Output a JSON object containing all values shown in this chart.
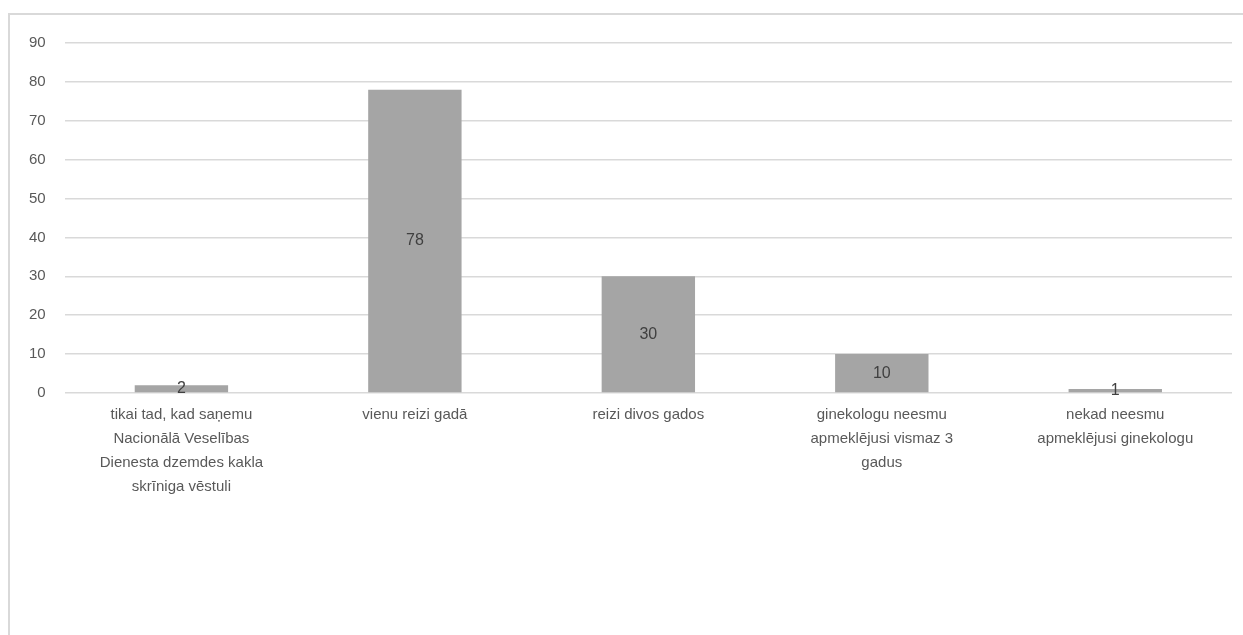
{
  "chart_data": {
    "type": "bar",
    "categories": [
      "tikai tad, kad saņemu Nacionālā Veselības Dienesta dzemdes kakla skrīniga vēstuli",
      "vienu reizi gadā",
      "reizi divos gados",
      "ginekologu neesmu apmeklējusi vismaz 3 gadus",
      "nekad neesmu apmeklējusi ginekologu"
    ],
    "values": [
      2,
      78,
      30,
      10,
      1
    ],
    "color": "#a5a5a5",
    "ylim": [
      0,
      90
    ],
    "yticks": [
      0,
      10,
      20,
      30,
      40,
      50,
      60,
      70,
      80,
      90
    ],
    "grid": "y",
    "data_labels": true
  }
}
